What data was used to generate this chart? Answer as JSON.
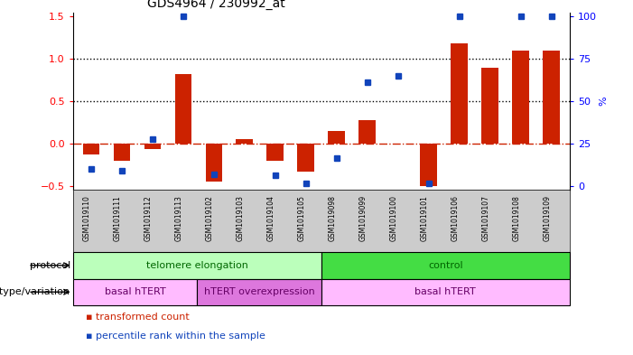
{
  "title": "GDS4964 / 230992_at",
  "samples": [
    "GSM1019110",
    "GSM1019111",
    "GSM1019112",
    "GSM1019113",
    "GSM1019102",
    "GSM1019103",
    "GSM1019104",
    "GSM1019105",
    "GSM1019098",
    "GSM1019099",
    "GSM1019100",
    "GSM1019101",
    "GSM1019106",
    "GSM1019107",
    "GSM1019108",
    "GSM1019109"
  ],
  "bar_values": [
    -0.13,
    -0.2,
    -0.07,
    0.82,
    -0.45,
    0.05,
    -0.2,
    -0.33,
    0.15,
    0.28,
    0.0,
    -0.5,
    1.18,
    0.9,
    1.1,
    1.1
  ],
  "dot_values": [
    -0.3,
    -0.32,
    0.05,
    1.5,
    -0.37,
    null,
    -0.38,
    -0.47,
    -0.17,
    0.72,
    0.8,
    -0.47,
    1.5,
    null,
    1.5,
    1.5
  ],
  "ylim": [
    -0.55,
    1.55
  ],
  "yticks_left": [
    -0.5,
    0.0,
    0.5,
    1.0,
    1.5
  ],
  "yticks_right": [
    0,
    25,
    50,
    75,
    100
  ],
  "dotted_lines": [
    0.5,
    1.0
  ],
  "bar_color": "#cc2200",
  "dot_color": "#1144bb",
  "protocol_groups": [
    {
      "label": "telomere elongation",
      "start": 0,
      "end": 7,
      "color": "#bbffbb"
    },
    {
      "label": "control",
      "start": 8,
      "end": 15,
      "color": "#44dd44"
    }
  ],
  "genotype_groups": [
    {
      "label": "basal hTERT",
      "start": 0,
      "end": 3,
      "color": "#ffbbff"
    },
    {
      "label": "hTERT overexpression",
      "start": 4,
      "end": 7,
      "color": "#dd77dd"
    },
    {
      "label": "basal hTERT",
      "start": 8,
      "end": 15,
      "color": "#ffbbff"
    }
  ],
  "legend_items": [
    {
      "color": "#cc2200",
      "label": "transformed count"
    },
    {
      "color": "#1144bb",
      "label": "percentile rank within the sample"
    }
  ],
  "ylabel_right": "%",
  "tick_bg": "#cccccc"
}
